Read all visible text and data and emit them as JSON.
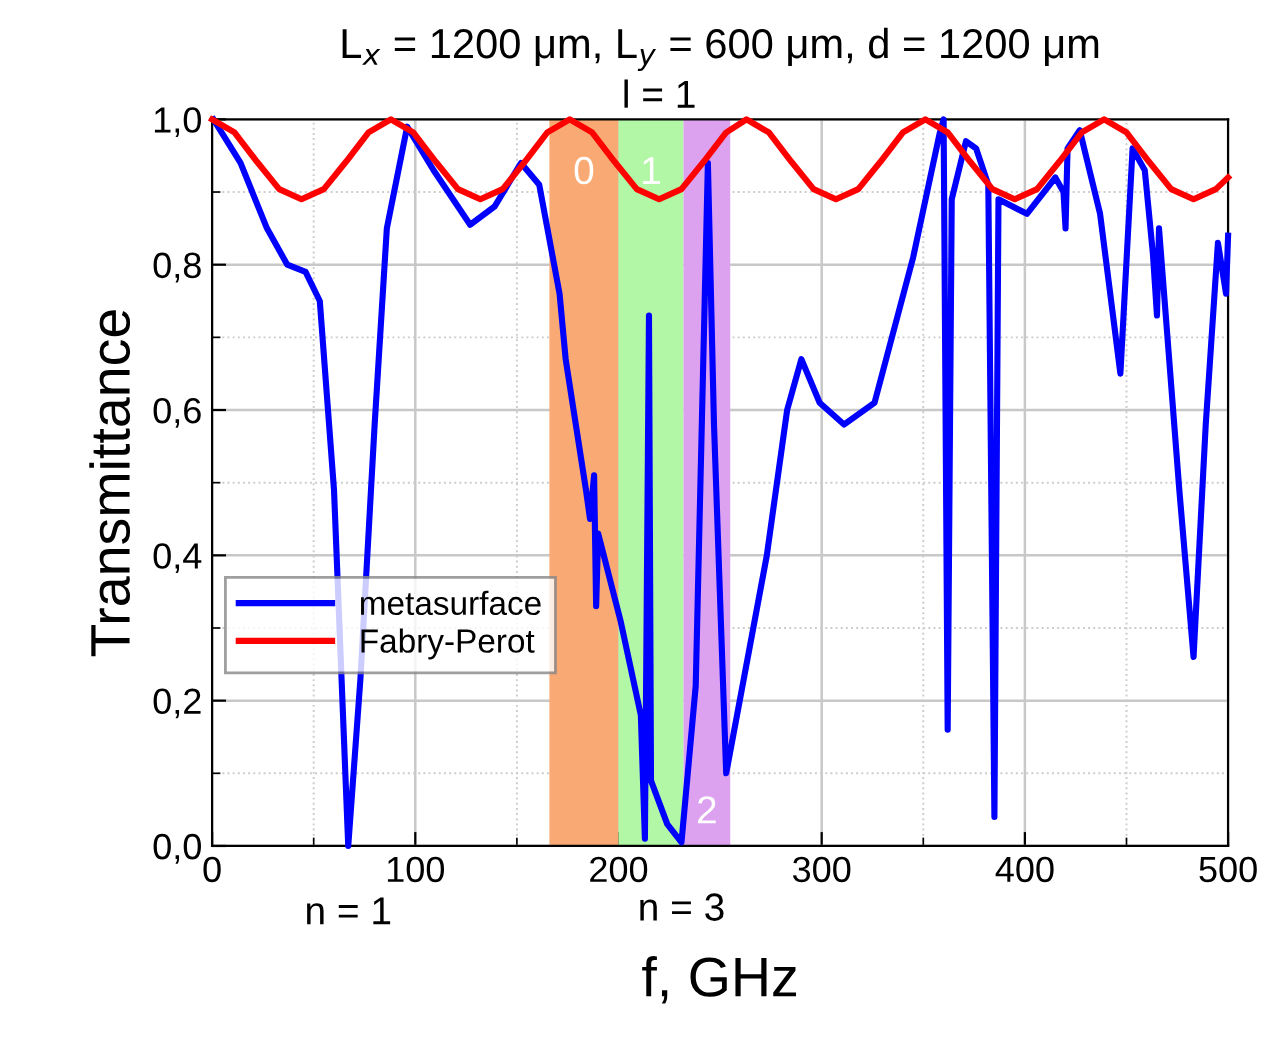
{
  "chart_data": {
    "type": "line",
    "title": "L$_{x}$ = 1200 μm, L$_{y}$ = 600 μm, d = 1200 μm",
    "xlabel": "f, GHz",
    "ylabel": "Transmittance",
    "xlim": [
      0,
      500
    ],
    "ylim": [
      0,
      1
    ],
    "xticks": [
      0,
      100,
      200,
      300,
      400,
      500
    ],
    "yticks": [
      {
        "value": 0,
        "label": "0,0"
      },
      {
        "value": 0.2,
        "label": "0,2"
      },
      {
        "value": 0.4,
        "label": "0,4"
      },
      {
        "value": 0.6,
        "label": "0,6"
      },
      {
        "value": 0.8,
        "label": "0,8"
      },
      {
        "value": 1,
        "label": "1,0"
      }
    ],
    "grid": true,
    "legend": "lower left",
    "marker": "none",
    "line_style": "solid",
    "bands": [
      {
        "axis": "x",
        "from": 166,
        "to": 200,
        "color": "#f9aa74",
        "label": "0"
      },
      {
        "axis": "x",
        "from": 200,
        "to": 232,
        "color": "#b2f7a6",
        "label": "1"
      },
      {
        "axis": "x",
        "from": 232,
        "to": 255,
        "color": "#dca2f0",
        "label": "2"
      }
    ],
    "annotations": [
      "l = 1",
      {
        "text": "n = 1",
        "x": 67,
        "y": 0.0
      },
      {
        "text": "n = 3",
        "x": 231,
        "y": 0.005
      }
    ],
    "series": [
      {
        "name": "metasurface",
        "color": "#0000ff",
        "x": [
          0.7,
          14,
          27,
          37,
          46,
          53,
          60,
          65,
          67,
          73,
          80,
          86,
          96,
          109,
          127,
          139,
          152,
          161,
          171,
          174,
          184,
          186,
          188,
          189,
          190,
          201,
          211,
          213,
          215,
          216,
          224,
          231,
          238,
          244,
          247,
          253,
          273,
          283,
          290,
          299,
          311,
          326,
          345,
          358,
          360,
          362,
          364,
          371,
          376,
          382,
          385,
          387,
          401,
          415,
          419,
          420,
          421,
          427,
          437,
          447,
          453,
          459,
          463,
          465,
          466,
          476,
          483,
          489,
          495,
          499,
          500
        ],
        "values": [
          1.0,
          0.94,
          0.85,
          0.8,
          0.79,
          0.75,
          0.49,
          0.14,
          0.0,
          0.23,
          0.58,
          0.85,
          0.99,
          0.93,
          0.855,
          0.88,
          0.94,
          0.91,
          0.76,
          0.67,
          0.49,
          0.45,
          0.51,
          0.33,
          0.43,
          0.31,
          0.18,
          0.01,
          0.73,
          0.09,
          0.03,
          0.005,
          0.22,
          0.94,
          0.58,
          0.1,
          0.4,
          0.6,
          0.67,
          0.61,
          0.58,
          0.61,
          0.81,
          0.98,
          1.0,
          0.16,
          0.89,
          0.97,
          0.96,
          0.91,
          0.04,
          0.89,
          0.87,
          0.92,
          0.9,
          0.85,
          0.96,
          0.985,
          0.87,
          0.65,
          0.96,
          0.93,
          0.815,
          0.73,
          0.85,
          0.49,
          0.26,
          0.58,
          0.83,
          0.76,
          0.84
        ]
      },
      {
        "name": "Fabry-Perot",
        "color": "#ff0000",
        "x": [
          0,
          11,
          22,
          33,
          44,
          55,
          66,
          77,
          88,
          99,
          110,
          121,
          132,
          143,
          154,
          165,
          176,
          187,
          198,
          209,
          220,
          231,
          242,
          253,
          263,
          274,
          285,
          296,
          307,
          318,
          329,
          340,
          351,
          362,
          373,
          384,
          395,
          406,
          417,
          428,
          439,
          450,
          461,
          472,
          483,
          494,
          500
        ],
        "values": [
          1.0,
          0.982,
          0.942,
          0.904,
          0.89,
          0.904,
          0.942,
          0.982,
          1.0,
          0.982,
          0.942,
          0.904,
          0.89,
          0.904,
          0.942,
          0.982,
          1.0,
          0.982,
          0.942,
          0.904,
          0.89,
          0.904,
          0.942,
          0.982,
          1.0,
          0.982,
          0.942,
          0.904,
          0.89,
          0.904,
          0.942,
          0.982,
          1.0,
          0.982,
          0.942,
          0.904,
          0.89,
          0.904,
          0.942,
          0.982,
          1.0,
          0.982,
          0.942,
          0.904,
          0.89,
          0.904,
          0.92
        ]
      }
    ]
  }
}
